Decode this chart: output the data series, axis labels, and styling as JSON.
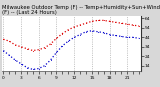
{
  "title": "Milwaukee Outdoor Temp (F) -- Temp+Humidity+Sun+Wind (F) -- (Last 24 Hours)",
  "background_color": "#d8d8d8",
  "plot_bg_color": "#ffffff",
  "grid_color": "#999999",
  "hours": [
    0,
    1,
    2,
    3,
    4,
    5,
    6,
    7,
    8,
    9,
    10,
    11,
    12,
    13,
    14,
    15,
    16,
    17,
    18,
    19,
    20,
    21,
    22,
    23
  ],
  "temp": [
    42,
    40,
    36,
    34,
    32,
    30,
    31,
    33,
    37,
    43,
    48,
    52,
    55,
    57,
    59,
    61,
    62,
    62,
    61,
    60,
    59,
    58,
    57,
    56
  ],
  "thsw": [
    30,
    25,
    20,
    16,
    12,
    10,
    11,
    14,
    20,
    28,
    35,
    40,
    44,
    47,
    50,
    51,
    50,
    49,
    47,
    46,
    45,
    44,
    44,
    43
  ],
  "temp_color": "#dd0000",
  "thsw_color": "#0000cc",
  "ylim_min": 8,
  "ylim_max": 67,
  "ytick_positions": [
    14,
    24,
    34,
    44,
    54,
    64
  ],
  "ytick_labels": [
    "14",
    "24",
    "34",
    "44",
    "54",
    "64"
  ],
  "title_fontsize": 3.8,
  "tick_fontsize": 3.2,
  "line_width": 0.9,
  "marker_size": 1.2,
  "vgrid_hours": [
    0,
    3,
    6,
    9,
    12,
    15,
    18,
    21
  ]
}
